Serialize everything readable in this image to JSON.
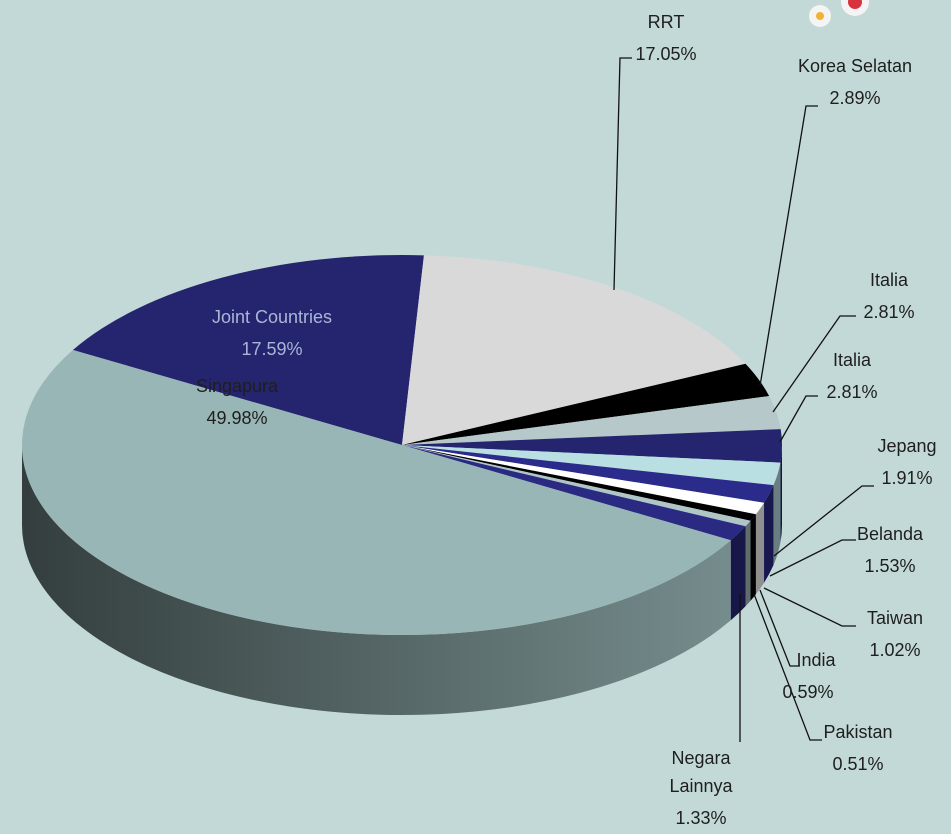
{
  "chart_data": {
    "type": "pie",
    "categories": [
      "Singapura",
      "Joint Countries",
      "RRT",
      "Korea Selatan",
      "Italia",
      "Italia",
      "Jepang",
      "Belanda",
      "Taiwan",
      "India",
      "Pakistan",
      "Negara Lainnya"
    ],
    "values": [
      49.98,
      17.59,
      17.05,
      2.89,
      2.81,
      2.81,
      1.91,
      1.53,
      1.02,
      0.59,
      0.51,
      1.33
    ],
    "value_labels": [
      "49.98%",
      "17.59%",
      "17.05%",
      "2.89%",
      "2.81%",
      "2.81%",
      "1.91%",
      "1.53%",
      "1.02%",
      "0.59%",
      "0.51%",
      "1.33%"
    ],
    "colors": [
      "#98b6b6",
      "#25256f",
      "#d9d9d9",
      "#000000",
      "#b7c8ca",
      "#25256f",
      "#b9dfe2",
      "#2b2b8c",
      "#ffffff",
      "#000000",
      "#b0c6c6",
      "#2a2a82"
    ]
  }
}
